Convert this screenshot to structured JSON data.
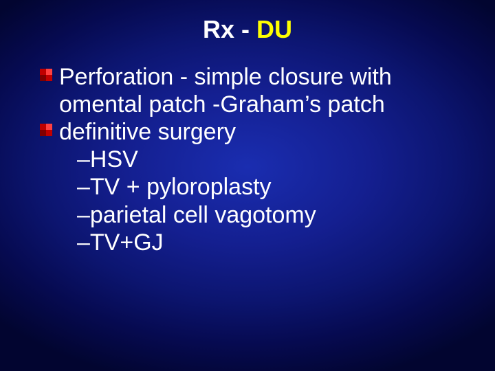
{
  "slide": {
    "title_part1": "Rx - ",
    "title_part2": " DU",
    "title_fontsize": 36,
    "title_color_part1": "#ffffff",
    "title_color_part2": "#ffff00",
    "body_fontsize": 34,
    "body_color": "#ffffff",
    "bullet_colors": {
      "tl": "#c00000",
      "tr": "#ff4040",
      "bl": "#800000",
      "br": "#c00000"
    },
    "bullets": [
      {
        "text": "Perforation - simple closure with omental patch -Graham’s patch",
        "has_marker": true
      },
      {
        "text": "definitive surgery",
        "has_marker": true
      }
    ],
    "subitems": [
      "–HSV",
      "–TV + pyloroplasty",
      "–parietal cell vagotomy",
      "–TV+GJ"
    ],
    "background": {
      "center_color": "#1a2db0",
      "edge_color": "#020530"
    }
  }
}
